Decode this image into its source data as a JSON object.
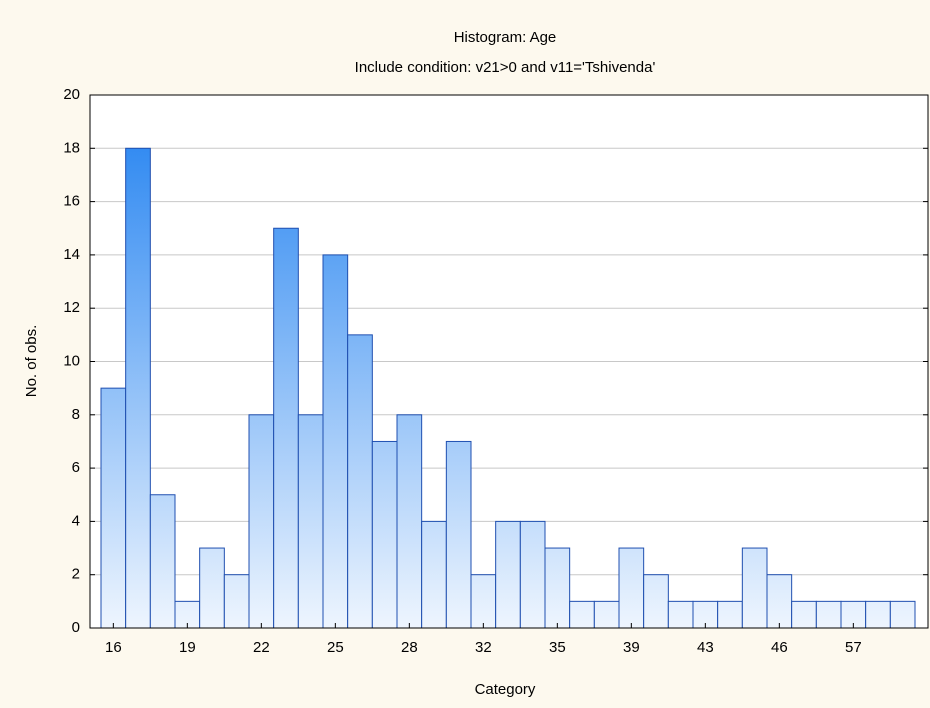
{
  "chart_data": {
    "type": "histogram",
    "title": "Histogram: Age",
    "subtitle": "Include condition: v21>0  and v11='Tshivenda'",
    "x_label": "Category",
    "y_label": "No. of obs.",
    "categories": [
      "16",
      null,
      null,
      "19",
      null,
      null,
      "22",
      null,
      null,
      "25",
      null,
      null,
      "28",
      null,
      null,
      "32",
      null,
      null,
      "35",
      null,
      null,
      "39",
      null,
      null,
      "43",
      null,
      null,
      "46",
      null,
      null,
      "57",
      null,
      null
    ],
    "values": [
      9,
      18,
      5,
      1,
      3,
      2,
      8,
      15,
      8,
      14,
      11,
      7,
      8,
      4,
      7,
      2,
      4,
      4,
      3,
      1,
      1,
      3,
      2,
      1,
      1,
      1,
      3,
      2,
      1,
      1,
      1,
      1,
      1
    ],
    "color": "#1f80f0",
    "edge_color": "#1f4fb0",
    "ylim": [
      0,
      20
    ],
    "yticks": [
      0,
      2,
      4,
      6,
      8,
      10,
      12,
      14,
      16,
      18,
      20
    ],
    "grid": true
  }
}
